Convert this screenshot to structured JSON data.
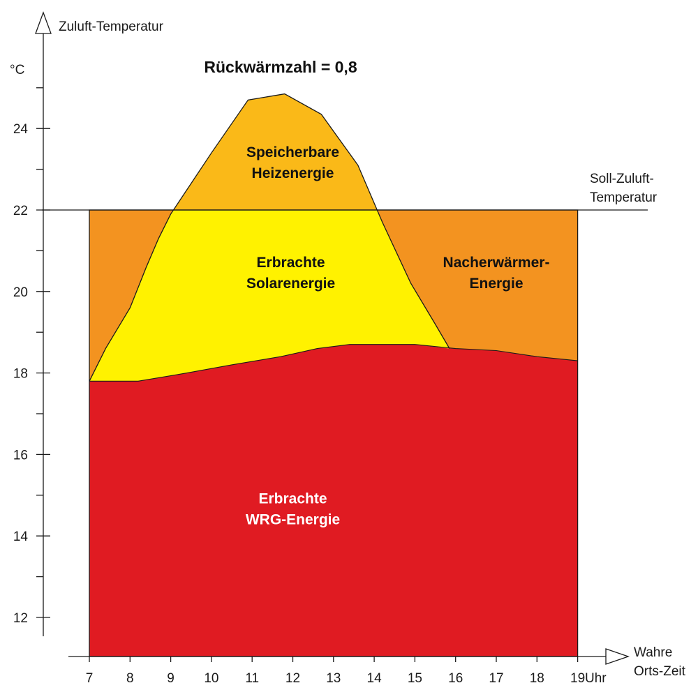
{
  "chart_data": {
    "type": "area",
    "title": "Rückwärmzahl = 0,8",
    "ylabel": "Zuluft-Temperatur",
    "yunit": "°C",
    "xlabel_line1": "Wahre",
    "xlabel_line2": "Orts-Zeit",
    "xunit": "Uhr",
    "xlim": [
      7,
      19
    ],
    "ylim": [
      11,
      25
    ],
    "x_ticks": [
      7,
      8,
      9,
      10,
      11,
      12,
      13,
      14,
      15,
      16,
      17,
      18,
      19
    ],
    "y_ticks_labeled": [
      12,
      14,
      16,
      18,
      20,
      22,
      24
    ],
    "y_ticks_minor": [
      13,
      15,
      17,
      19,
      21,
      23,
      25
    ],
    "reference_line": {
      "value": 22,
      "label_line1": "Soll-Zuluft-",
      "label_line2": "Temperatur"
    },
    "series": [
      {
        "label": "wrg",
        "points": [
          [
            7,
            17.8
          ],
          [
            8.2,
            17.8
          ],
          [
            9.4,
            18.0
          ],
          [
            10.5,
            18.2
          ],
          [
            11.7,
            18.4
          ],
          [
            12.6,
            18.6
          ],
          [
            13.4,
            18.7
          ],
          [
            14.0,
            18.7
          ],
          [
            15.0,
            18.7
          ],
          [
            16.0,
            18.6
          ],
          [
            17.0,
            18.55
          ],
          [
            18.0,
            18.4
          ],
          [
            19.0,
            18.3
          ]
        ]
      },
      {
        "label": "solar",
        "points": [
          [
            7,
            17.8
          ],
          [
            7.4,
            18.6
          ],
          [
            8.0,
            19.6
          ],
          [
            8.4,
            20.6
          ],
          [
            8.7,
            21.3
          ],
          [
            9.0,
            21.9
          ],
          [
            10.0,
            23.4
          ],
          [
            10.9,
            24.7
          ],
          [
            11.8,
            24.85
          ],
          [
            12.7,
            24.35
          ],
          [
            13.6,
            23.1
          ],
          [
            14.2,
            21.7
          ],
          [
            14.9,
            20.2
          ],
          [
            15.5,
            19.2
          ],
          [
            15.85,
            18.6
          ]
        ]
      },
      {
        "label": "soll",
        "points": [
          [
            7,
            22
          ],
          [
            19,
            22
          ]
        ]
      }
    ],
    "region_labels": [
      {
        "line1": "Speicherbare",
        "line2": "Heizenergie",
        "x": 12.0,
        "y": 23.3,
        "color": "#111111"
      },
      {
        "line1": "Erbrachte",
        "line2": "Solarenergie",
        "x": 11.95,
        "y": 20.6,
        "color": "#111111"
      },
      {
        "line1": "Nacherwärmer-",
        "line2": "Energie",
        "x": 17.0,
        "y": 20.6,
        "color": "#111111"
      },
      {
        "line1": "Erbrachte",
        "line2": "WRG-Energie",
        "x": 12.0,
        "y": 14.8,
        "color": "#ffffff"
      }
    ],
    "colors": {
      "wrg": "#e01b22",
      "solar": "#fff200",
      "nacherwaermer": "#f39320",
      "speicherbar": "#fab918",
      "line": "#1a1a1a"
    },
    "grid": false
  }
}
